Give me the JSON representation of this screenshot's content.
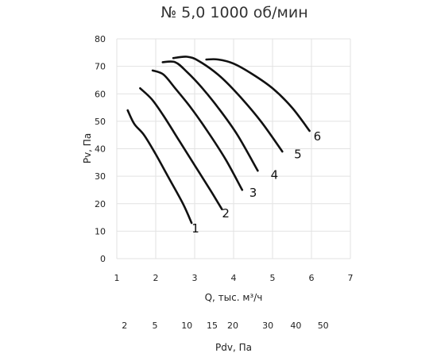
{
  "chart_data": {
    "type": "line",
    "title": "№ 5,0 1000 об/мин",
    "xlabel": "Q, тыс. м³/ч",
    "ylabel": "Pv, Па",
    "xlim": [
      1,
      7
    ],
    "ylim": [
      0,
      80
    ],
    "x_ticks": [
      "1",
      "2",
      "3",
      "4",
      "5",
      "6",
      "7"
    ],
    "y_ticks": [
      "0",
      "10",
      "20",
      "30",
      "40",
      "50",
      "60",
      "70",
      "80"
    ],
    "grid": true,
    "secondary_axis": {
      "label": "Pdv, Па",
      "ticks": [
        {
          "label": "2",
          "q": 1.2
        },
        {
          "label": "5",
          "q": 1.98
        },
        {
          "label": "10",
          "q": 2.8
        },
        {
          "label": "15",
          "q": 3.45
        },
        {
          "label": "20",
          "q": 3.98
        },
        {
          "label": "30",
          "q": 4.88
        },
        {
          "label": "40",
          "q": 5.6
        },
        {
          "label": "50",
          "q": 6.3
        }
      ]
    },
    "series": [
      {
        "name": "1",
        "points": [
          [
            1.28,
            54
          ],
          [
            1.45,
            49
          ],
          [
            1.7,
            45
          ],
          [
            2.0,
            38
          ],
          [
            2.35,
            29
          ],
          [
            2.7,
            20
          ],
          [
            2.92,
            13
          ]
        ]
      },
      {
        "name": "2",
        "points": [
          [
            1.6,
            62
          ],
          [
            1.9,
            58
          ],
          [
            2.2,
            52
          ],
          [
            2.6,
            43
          ],
          [
            3.0,
            34
          ],
          [
            3.4,
            25
          ],
          [
            3.7,
            18
          ]
        ]
      },
      {
        "name": "3",
        "points": [
          [
            1.92,
            68.5
          ],
          [
            2.2,
            67
          ],
          [
            2.5,
            62
          ],
          [
            2.9,
            55
          ],
          [
            3.3,
            47
          ],
          [
            3.8,
            36
          ],
          [
            4.22,
            25
          ]
        ]
      },
      {
        "name": "4",
        "points": [
          [
            2.18,
            71.5
          ],
          [
            2.5,
            71.5
          ],
          [
            2.8,
            68
          ],
          [
            3.2,
            62
          ],
          [
            3.6,
            55
          ],
          [
            4.1,
            45
          ],
          [
            4.62,
            32
          ]
        ]
      },
      {
        "name": "5",
        "points": [
          [
            2.45,
            73
          ],
          [
            2.8,
            73.5
          ],
          [
            3.1,
            72
          ],
          [
            3.6,
            67
          ],
          [
            4.1,
            60
          ],
          [
            4.7,
            50
          ],
          [
            5.25,
            39
          ]
        ]
      },
      {
        "name": "6",
        "points": [
          [
            3.3,
            72.5
          ],
          [
            3.6,
            72.5
          ],
          [
            4.0,
            71
          ],
          [
            4.5,
            67
          ],
          [
            5.0,
            62
          ],
          [
            5.5,
            55
          ],
          [
            5.95,
            46.5
          ]
        ]
      }
    ],
    "series_label_positions": [
      {
        "name": "1",
        "x": 3.02,
        "y": 9.5
      },
      {
        "name": "2",
        "x": 3.8,
        "y": 15
      },
      {
        "name": "3",
        "x": 4.5,
        "y": 22.5
      },
      {
        "name": "4",
        "x": 5.05,
        "y": 29
      },
      {
        "name": "5",
        "x": 5.65,
        "y": 36.5
      },
      {
        "name": "6",
        "x": 6.15,
        "y": 43
      }
    ]
  }
}
